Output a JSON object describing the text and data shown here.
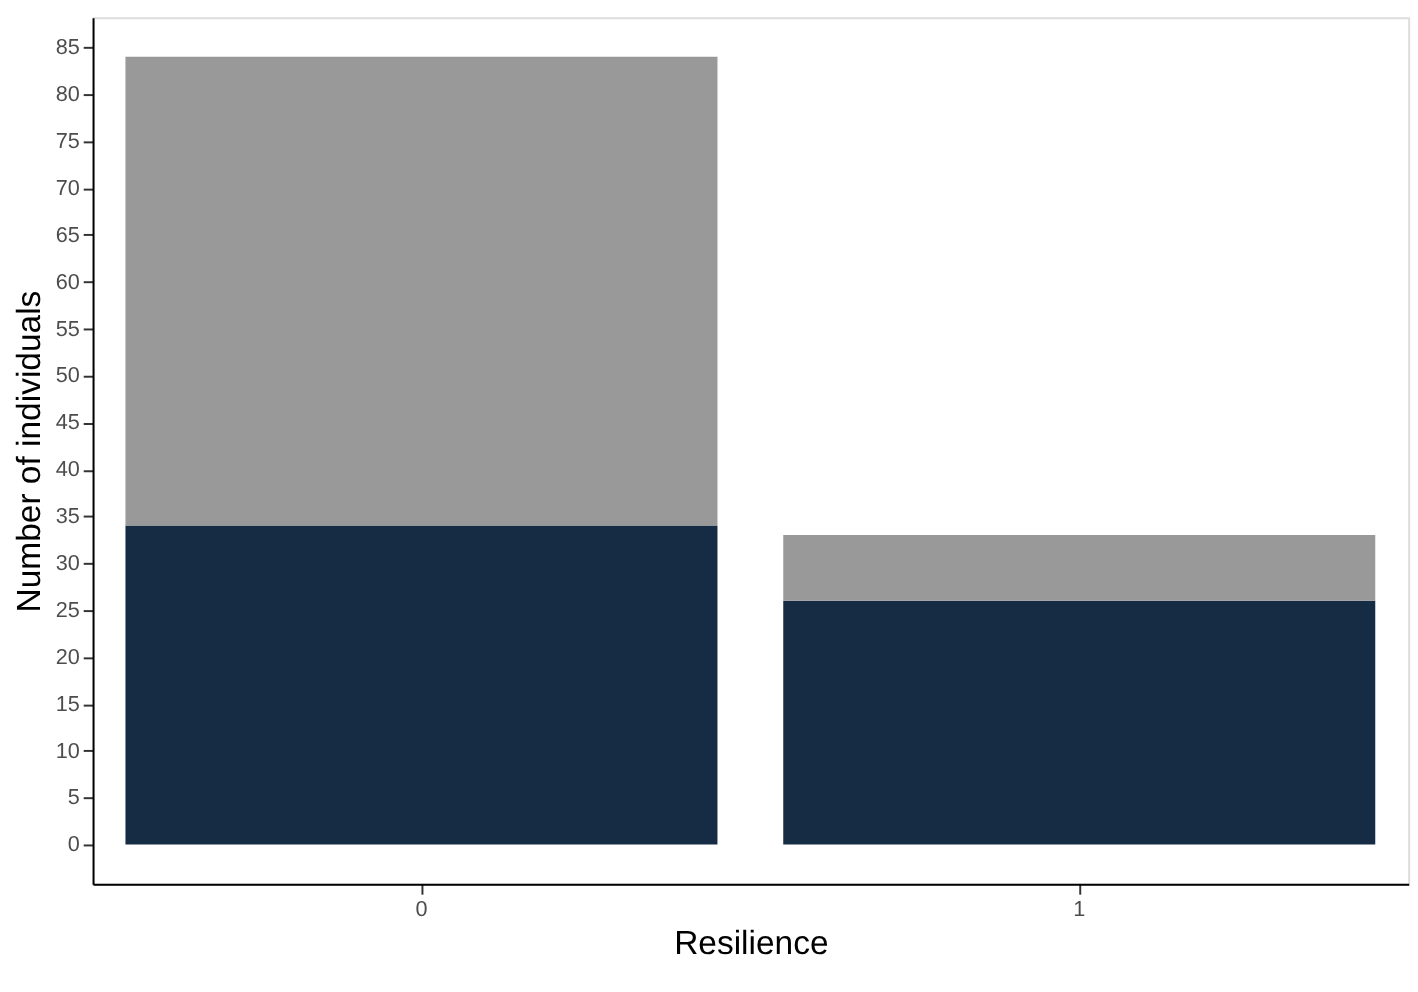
{
  "chart_data": {
    "type": "bar",
    "xlabel": "Resilience",
    "ylabel": "Number of individuals",
    "categories": [
      "0",
      "1"
    ],
    "stacked": true,
    "series": [
      {
        "color": "#162c45",
        "values": [
          34,
          26
        ]
      },
      {
        "color": "#999999",
        "values": [
          50,
          7
        ]
      }
    ],
    "ylim": [
      -4.2,
      88.2
    ],
    "yticks": [
      0,
      5,
      10,
      15,
      20,
      25,
      30,
      35,
      40,
      45,
      50,
      55,
      60,
      65,
      70,
      75,
      80,
      85
    ],
    "grid": false,
    "legend": false
  }
}
